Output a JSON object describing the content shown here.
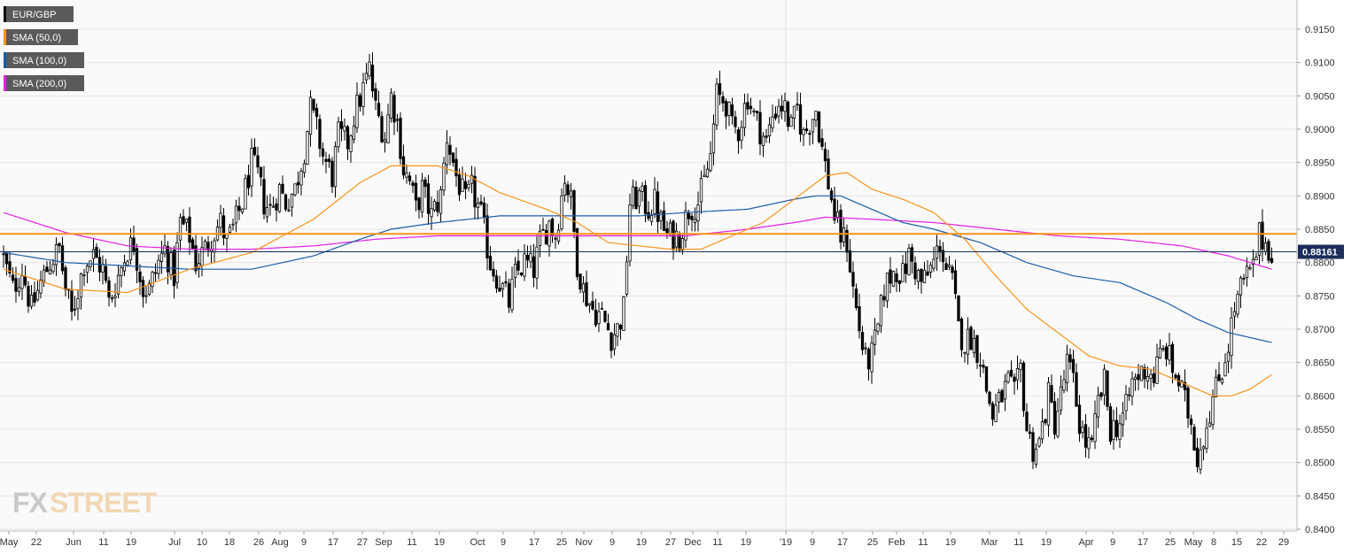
{
  "chart_data": {
    "type": "candlestick",
    "symbol": "EUR/GBP",
    "y_ticks": [
      "0.8400",
      "0.8450",
      "0.8500",
      "0.8550",
      "0.8600",
      "0.8650",
      "0.8700",
      "0.8750",
      "0.8800",
      "0.8850",
      "0.8900",
      "0.8950",
      "0.9000",
      "0.9050",
      "0.9100",
      "0.9150"
    ],
    "ylim": [
      0.84,
      0.9175
    ],
    "x_tick_labels": [
      "May",
      "22",
      "Jun",
      "11",
      "19",
      "Jul",
      "10",
      "18",
      "26",
      "Aug",
      "9",
      "17",
      "27",
      "Sep",
      "11",
      "19",
      "Oct",
      "9",
      "17",
      "25",
      "Nov",
      "9",
      "19",
      "27",
      "Dec",
      "11",
      "19",
      "'19",
      "9",
      "17",
      "25",
      "Feb",
      "11",
      "19",
      "Mar",
      "11",
      "19",
      "Apr",
      "9",
      "17",
      "25",
      "May",
      "8",
      "15",
      "22",
      "29"
    ],
    "grid": true,
    "legend_placement": "top-left",
    "legend": [
      {
        "label": "EUR/GBP",
        "color": "#000000"
      },
      {
        "label": "SMA (50,0)",
        "color": "#f7941d"
      },
      {
        "label": "SMA (100,0)",
        "color": "#1c5ca8"
      },
      {
        "label": "SMA (200,0)",
        "color": "#e020e0"
      }
    ],
    "last_price": "0.88161",
    "horizontal_line": {
      "value": 0.8843,
      "color": "#f7941d"
    },
    "colors": {
      "up": "#ffffff",
      "down": "#000000",
      "sma50": "#f7941d",
      "sma100": "#1c5ca8",
      "sma200": "#e020e0",
      "grid": "#e6e6e6",
      "price_tag": "#1c2d5a"
    },
    "watermark": {
      "part1": "FX",
      "part2": "STREET"
    },
    "close_path": [
      [
        0,
        0.8805
      ],
      [
        3,
        0.876
      ],
      [
        6,
        0.879
      ],
      [
        9,
        0.873
      ],
      [
        12,
        0.877
      ],
      [
        15,
        0.88
      ],
      [
        18,
        0.882
      ],
      [
        20,
        0.876
      ],
      [
        22,
        0.872
      ],
      [
        24,
        0.876
      ],
      [
        26,
        0.88
      ],
      [
        29,
        0.881
      ],
      [
        32,
        0.879
      ],
      [
        34,
        0.874
      ],
      [
        37,
        0.878
      ],
      [
        40,
        0.882
      ],
      [
        42,
        0.883
      ],
      [
        45,
        0.876
      ],
      [
        47,
        0.876
      ],
      [
        50,
        0.88
      ],
      [
        52,
        0.882
      ],
      [
        55,
        0.878
      ],
      [
        57,
        0.886
      ],
      [
        60,
        0.884
      ],
      [
        62,
        0.88
      ],
      [
        65,
        0.882
      ],
      [
        67,
        0.884
      ],
      [
        70,
        0.886
      ],
      [
        72,
        0.883
      ],
      [
        74,
        0.885
      ],
      [
        77,
        0.889
      ],
      [
        80,
        0.895
      ],
      [
        82,
        0.893
      ],
      [
        84,
        0.889
      ],
      [
        86,
        0.888
      ],
      [
        89,
        0.891
      ],
      [
        91,
        0.889
      ],
      [
        94,
        0.891
      ],
      [
        97,
        0.897
      ],
      [
        99,
        0.903
      ],
      [
        101,
        0.9
      ],
      [
        103,
        0.896
      ],
      [
        106,
        0.893
      ],
      [
        108,
        0.899
      ],
      [
        111,
        0.898
      ],
      [
        113,
        0.902
      ],
      [
        116,
        0.906
      ],
      [
        118,
        0.909
      ],
      [
        120,
        0.903
      ],
      [
        123,
        0.899
      ],
      [
        125,
        0.905
      ],
      [
        127,
        0.901
      ],
      [
        129,
        0.894
      ],
      [
        131,
        0.892
      ],
      [
        133,
        0.888
      ],
      [
        135,
        0.891
      ],
      [
        138,
        0.887
      ],
      [
        141,
        0.89
      ],
      [
        143,
        0.899
      ],
      [
        146,
        0.893
      ],
      [
        149,
        0.889
      ],
      [
        151,
        0.891
      ],
      [
        154,
        0.887
      ],
      [
        157,
        0.88
      ],
      [
        160,
        0.877
      ],
      [
        163,
        0.874
      ],
      [
        165,
        0.878
      ],
      [
        168,
        0.88
      ],
      [
        171,
        0.879
      ],
      [
        173,
        0.883
      ],
      [
        176,
        0.886
      ],
      [
        178,
        0.884
      ],
      [
        181,
        0.893
      ],
      [
        183,
        0.889
      ],
      [
        185,
        0.88
      ],
      [
        187,
        0.876
      ],
      [
        190,
        0.873
      ],
      [
        193,
        0.872
      ],
      [
        196,
        0.869
      ],
      [
        198,
        0.87
      ],
      [
        200,
        0.873
      ],
      [
        202,
        0.889
      ],
      [
        205,
        0.89
      ],
      [
        208,
        0.888
      ],
      [
        210,
        0.889
      ],
      [
        212,
        0.886
      ],
      [
        214,
        0.884
      ],
      [
        216,
        0.884
      ],
      [
        218,
        0.884
      ],
      [
        221,
        0.888
      ],
      [
        224,
        0.889
      ],
      [
        226,
        0.892
      ],
      [
        228,
        0.896
      ],
      [
        230,
        0.905
      ],
      [
        233,
        0.904
      ],
      [
        235,
        0.9
      ],
      [
        237,
        0.9
      ],
      [
        240,
        0.905
      ],
      [
        242,
        0.902
      ],
      [
        244,
        0.9
      ],
      [
        246,
        0.898
      ],
      [
        248,
        0.902
      ],
      [
        250,
        0.904
      ],
      [
        252,
        0.903
      ],
      [
        254,
        0.9
      ],
      [
        256,
        0.903
      ],
      [
        258,
        0.899
      ],
      [
        260,
        0.901
      ],
      [
        262,
        0.903
      ],
      [
        264,
        0.897
      ],
      [
        266,
        0.892
      ],
      [
        268,
        0.887
      ],
      [
        270,
        0.884
      ],
      [
        272,
        0.883
      ],
      [
        274,
        0.876
      ],
      [
        276,
        0.87
      ],
      [
        278,
        0.865
      ],
      [
        280,
        0.866
      ],
      [
        282,
        0.87
      ],
      [
        284,
        0.876
      ],
      [
        286,
        0.878
      ],
      [
        288,
        0.879
      ],
      [
        290,
        0.878
      ],
      [
        292,
        0.881
      ],
      [
        294,
        0.879
      ],
      [
        296,
        0.877
      ],
      [
        298,
        0.878
      ],
      [
        300,
        0.88
      ],
      [
        302,
        0.883
      ],
      [
        304,
        0.879
      ],
      [
        306,
        0.877
      ],
      [
        308,
        0.87
      ],
      [
        310,
        0.868
      ],
      [
        312,
        0.869
      ],
      [
        315,
        0.866
      ],
      [
        317,
        0.861
      ],
      [
        319,
        0.857
      ],
      [
        322,
        0.86
      ],
      [
        324,
        0.862
      ],
      [
        326,
        0.86
      ],
      [
        328,
        0.864
      ],
      [
        330,
        0.855
      ],
      [
        332,
        0.852
      ],
      [
        334,
        0.853
      ],
      [
        337,
        0.86
      ],
      [
        339,
        0.856
      ],
      [
        341,
        0.86
      ],
      [
        343,
        0.865
      ],
      [
        345,
        0.862
      ],
      [
        347,
        0.856
      ],
      [
        349,
        0.853
      ],
      [
        351,
        0.852
      ],
      [
        353,
        0.859
      ],
      [
        355,
        0.862
      ],
      [
        357,
        0.855
      ],
      [
        360,
        0.856
      ],
      [
        362,
        0.858
      ],
      [
        364,
        0.862
      ],
      [
        366,
        0.863
      ],
      [
        368,
        0.864
      ],
      [
        371,
        0.863
      ],
      [
        373,
        0.866
      ],
      [
        375,
        0.867
      ],
      [
        377,
        0.864
      ],
      [
        379,
        0.862
      ],
      [
        381,
        0.859
      ],
      [
        383,
        0.856
      ],
      [
        385,
        0.851
      ],
      [
        387,
        0.854
      ],
      [
        389,
        0.858
      ],
      [
        391,
        0.861
      ],
      [
        393,
        0.864
      ],
      [
        395,
        0.868
      ],
      [
        397,
        0.873
      ],
      [
        399,
        0.876
      ],
      [
        401,
        0.878
      ],
      [
        403,
        0.879
      ],
      [
        405,
        0.884
      ],
      [
        407,
        0.883
      ],
      [
        409,
        0.8816
      ]
    ],
    "sma50_path": [
      [
        0,
        0.879
      ],
      [
        20,
        0.876
      ],
      [
        40,
        0.8755
      ],
      [
        60,
        0.879
      ],
      [
        80,
        0.8815
      ],
      [
        100,
        0.8865
      ],
      [
        115,
        0.892
      ],
      [
        125,
        0.8945
      ],
      [
        140,
        0.8945
      ],
      [
        150,
        0.893
      ],
      [
        160,
        0.8905
      ],
      [
        175,
        0.888
      ],
      [
        185,
        0.886
      ],
      [
        195,
        0.883
      ],
      [
        205,
        0.8825
      ],
      [
        215,
        0.882
      ],
      [
        225,
        0.882
      ],
      [
        235,
        0.884
      ],
      [
        245,
        0.886
      ],
      [
        255,
        0.8895
      ],
      [
        265,
        0.893
      ],
      [
        272,
        0.8935
      ],
      [
        280,
        0.891
      ],
      [
        290,
        0.8895
      ],
      [
        300,
        0.8875
      ],
      [
        310,
        0.8835
      ],
      [
        320,
        0.878
      ],
      [
        330,
        0.873
      ],
      [
        340,
        0.8695
      ],
      [
        350,
        0.866
      ],
      [
        360,
        0.8645
      ],
      [
        370,
        0.864
      ],
      [
        380,
        0.862
      ],
      [
        390,
        0.86
      ],
      [
        396,
        0.86
      ],
      [
        402,
        0.861
      ],
      [
        409,
        0.8632
      ]
    ],
    "sma100_path": [
      [
        0,
        0.8815
      ],
      [
        20,
        0.88
      ],
      [
        40,
        0.8795
      ],
      [
        60,
        0.879
      ],
      [
        80,
        0.879
      ],
      [
        100,
        0.881
      ],
      [
        115,
        0.8835
      ],
      [
        125,
        0.885
      ],
      [
        140,
        0.886
      ],
      [
        160,
        0.887
      ],
      [
        175,
        0.887
      ],
      [
        190,
        0.887
      ],
      [
        205,
        0.887
      ],
      [
        220,
        0.8875
      ],
      [
        240,
        0.888
      ],
      [
        255,
        0.8895
      ],
      [
        262,
        0.89
      ],
      [
        270,
        0.89
      ],
      [
        280,
        0.888
      ],
      [
        290,
        0.886
      ],
      [
        300,
        0.885
      ],
      [
        315,
        0.883
      ],
      [
        330,
        0.88
      ],
      [
        345,
        0.878
      ],
      [
        360,
        0.877
      ],
      [
        375,
        0.874
      ],
      [
        385,
        0.8715
      ],
      [
        395,
        0.8695
      ],
      [
        409,
        0.868
      ]
    ],
    "sma200_path": [
      [
        0,
        0.8875
      ],
      [
        20,
        0.8845
      ],
      [
        40,
        0.8825
      ],
      [
        60,
        0.882
      ],
      [
        80,
        0.882
      ],
      [
        100,
        0.8825
      ],
      [
        120,
        0.8835
      ],
      [
        140,
        0.884
      ],
      [
        160,
        0.884
      ],
      [
        180,
        0.884
      ],
      [
        200,
        0.884
      ],
      [
        220,
        0.884
      ],
      [
        240,
        0.885
      ],
      [
        255,
        0.886
      ],
      [
        265,
        0.8868
      ],
      [
        280,
        0.8865
      ],
      [
        300,
        0.886
      ],
      [
        320,
        0.885
      ],
      [
        340,
        0.884
      ],
      [
        360,
        0.8835
      ],
      [
        380,
        0.8825
      ],
      [
        395,
        0.881
      ],
      [
        409,
        0.879
      ]
    ]
  }
}
